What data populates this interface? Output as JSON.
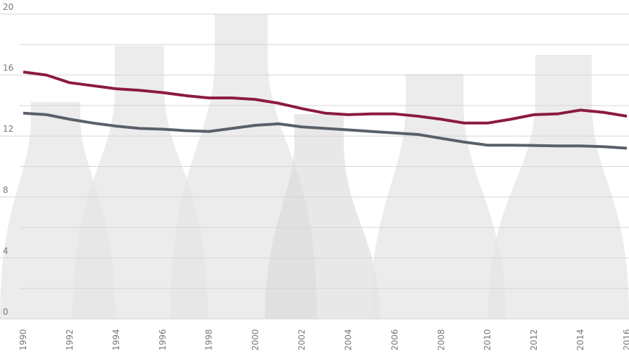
{
  "chart_data": {
    "type": "line",
    "x": [
      1990,
      1991,
      1992,
      1993,
      1994,
      1995,
      1996,
      1997,
      1998,
      1999,
      2000,
      2001,
      2002,
      2003,
      2004,
      2005,
      2006,
      2007,
      2008,
      2009,
      2010,
      2011,
      2012,
      2013,
      2014,
      2015,
      2016
    ],
    "series": [
      {
        "color": "#8b1a42",
        "values": [
          16.2,
          16.0,
          15.5,
          15.3,
          15.1,
          15.0,
          14.85,
          14.65,
          14.5,
          14.5,
          14.4,
          14.15,
          13.8,
          13.5,
          13.4,
          13.45,
          13.45,
          13.3,
          13.1,
          12.85,
          12.85,
          13.1,
          13.4,
          13.45,
          13.7,
          13.55,
          13.3
        ]
      },
      {
        "color": "#5a6069",
        "values": [
          13.5,
          13.4,
          13.1,
          12.85,
          12.65,
          12.5,
          12.45,
          12.35,
          12.3,
          12.5,
          12.7,
          12.8,
          12.6,
          12.5,
          12.4,
          12.3,
          12.2,
          12.1,
          11.85,
          11.6,
          11.4,
          11.4,
          11.38,
          11.35,
          11.35,
          11.3,
          11.2
        ]
      }
    ],
    "xlim": [
      1990,
      2016
    ],
    "xticks": [
      1990,
      1992,
      1994,
      1996,
      1998,
      2000,
      2002,
      2004,
      2006,
      2008,
      2010,
      2012,
      2014,
      2016
    ],
    "ylim": [
      0,
      20
    ],
    "yticks": [
      0,
      4,
      8,
      12,
      16,
      20
    ],
    "minor_yticks": [
      2,
      6,
      10,
      14,
      18
    ],
    "grid": true
  }
}
